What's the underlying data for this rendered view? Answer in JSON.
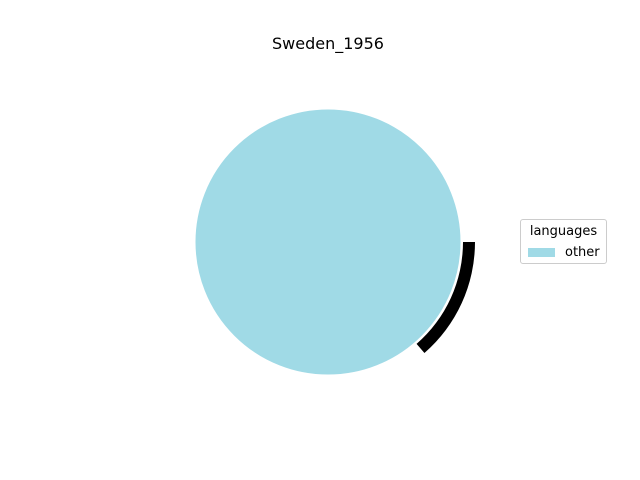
{
  "chart_data": {
    "type": "pie",
    "title": "Sweden_1956",
    "legend_title": "languages",
    "legend_position": "right",
    "categories": [
      "other"
    ],
    "values": [
      100
    ],
    "colors": [
      "#a0dae6"
    ],
    "outline_color": "#000000"
  }
}
